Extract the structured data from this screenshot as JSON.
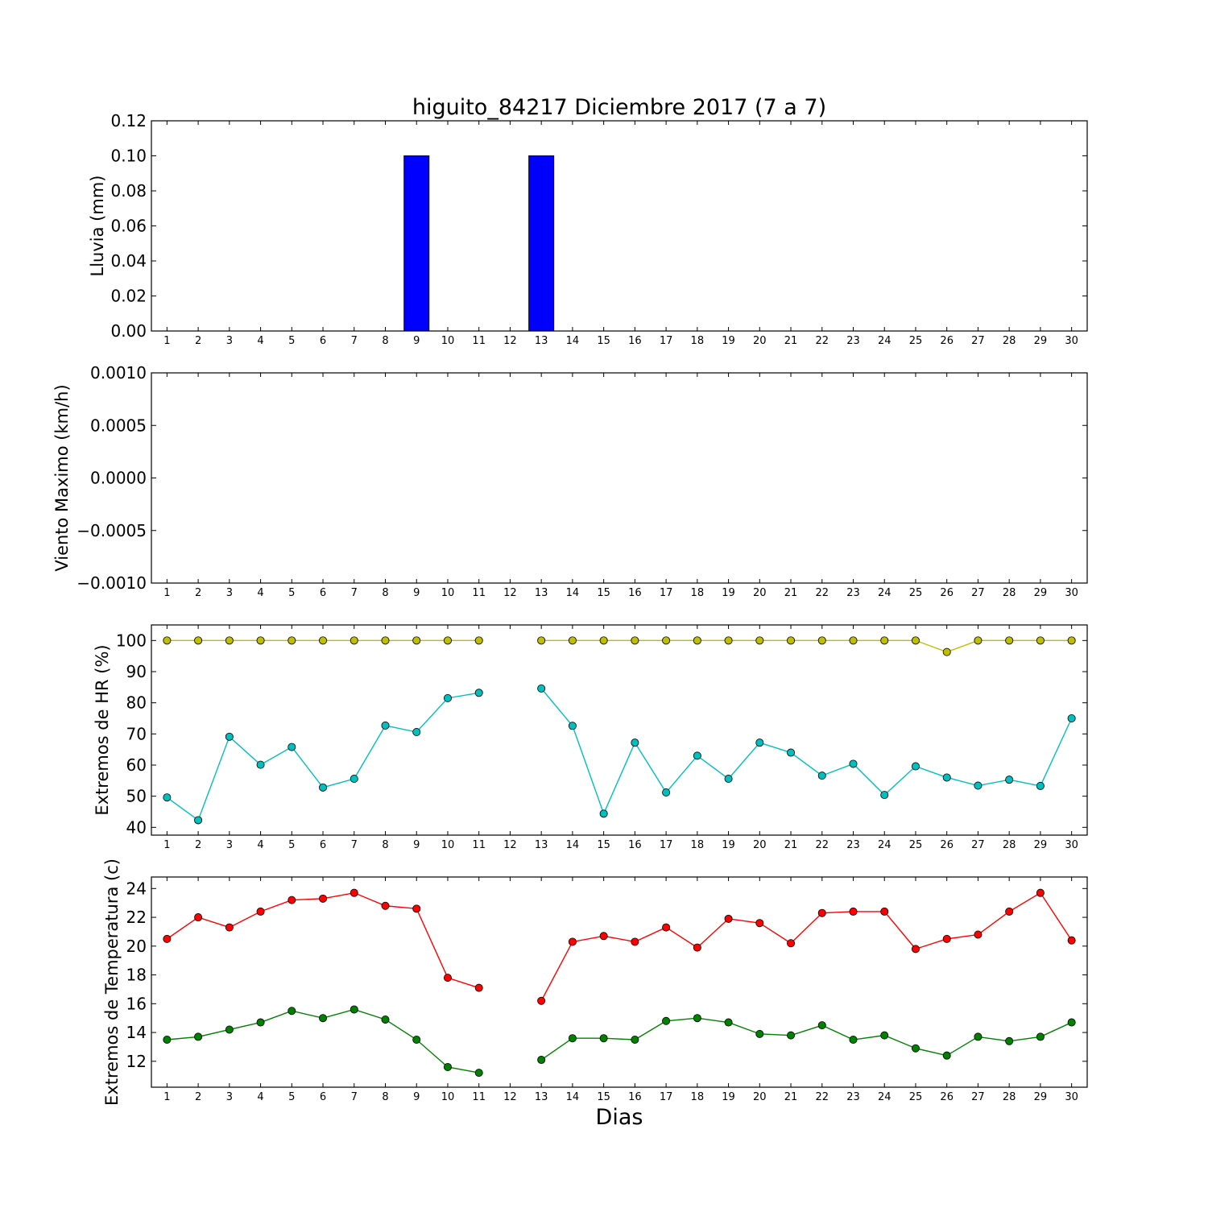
{
  "title": "higuito_84217 Diciembre 2017  (7 a 7)",
  "xlabel": "Dias",
  "chart_data": [
    {
      "type": "bar",
      "ylabel": "Lluvia (mm)",
      "ylim": [
        0,
        0.12
      ],
      "yticks": [
        "0.00",
        "0.02",
        "0.04",
        "0.06",
        "0.08",
        "0.10",
        "0.12"
      ],
      "x": [
        1,
        2,
        3,
        4,
        5,
        6,
        7,
        8,
        9,
        10,
        11,
        12,
        13,
        14,
        15,
        16,
        17,
        18,
        19,
        20,
        21,
        22,
        23,
        24,
        25,
        26,
        27,
        28,
        29,
        30
      ],
      "xticks": [
        "1",
        "2",
        "3",
        "4",
        "5",
        "6",
        "7",
        "8",
        "9",
        "10",
        "11",
        "12",
        "13",
        "14",
        "15",
        "16",
        "17",
        "18",
        "19",
        "20",
        "21",
        "22",
        "23",
        "24",
        "25",
        "26",
        "27",
        "28",
        "29",
        "30"
      ],
      "series": [
        {
          "color": "#0000ff",
          "values": [
            0,
            0,
            0,
            0,
            0,
            0,
            0,
            0,
            0.1,
            0,
            0,
            null,
            0.1,
            0,
            0,
            0,
            0,
            0,
            0,
            0,
            0,
            0,
            0,
            0,
            0,
            0,
            0,
            0,
            0,
            0
          ]
        }
      ]
    },
    {
      "type": "line",
      "ylabel": "Viento Maximo (km/h)",
      "ylim": [
        -0.001,
        0.001
      ],
      "yticks": [
        "−0.0010",
        "−0.0005",
        "0.0000",
        "0.0005",
        "0.0010"
      ],
      "xticks": [
        "1",
        "2",
        "3",
        "4",
        "5",
        "6",
        "7",
        "8",
        "9",
        "10",
        "11",
        "12",
        "13",
        "14",
        "15",
        "16",
        "17",
        "18",
        "19",
        "20",
        "21",
        "22",
        "23",
        "24",
        "25",
        "26",
        "27",
        "28",
        "29",
        "30"
      ],
      "series": []
    },
    {
      "type": "line",
      "ylabel": "Extremos de HR (%)",
      "ylim": [
        37.5,
        105
      ],
      "yticks": [
        "40",
        "50",
        "60",
        "70",
        "80",
        "90",
        "100"
      ],
      "xticks": [
        "1",
        "2",
        "3",
        "4",
        "5",
        "6",
        "7",
        "8",
        "9",
        "10",
        "11",
        "12",
        "13",
        "14",
        "15",
        "16",
        "17",
        "18",
        "19",
        "20",
        "21",
        "22",
        "23",
        "24",
        "25",
        "26",
        "27",
        "28",
        "29",
        "30"
      ],
      "series": [
        {
          "color": "#bfbf00",
          "values": [
            100,
            100,
            100,
            100,
            100,
            100,
            100,
            100,
            100,
            100,
            100,
            null,
            100,
            100,
            100,
            100,
            100,
            100,
            100,
            100,
            100,
            100,
            100,
            100,
            100,
            96.3,
            100,
            100,
            100,
            100
          ]
        },
        {
          "color": "#00bfbf",
          "values": [
            49.6,
            42.3,
            69.1,
            60.1,
            65.8,
            52.8,
            55.6,
            72.7,
            70.6,
            81.5,
            83.2,
            null,
            84.6,
            72.6,
            44.4,
            67.2,
            51.2,
            63.0,
            55.6,
            67.2,
            64.0,
            56.6,
            60.4,
            50.4,
            59.6,
            56.0,
            53.4,
            55.3,
            53.3,
            75.0
          ]
        }
      ]
    },
    {
      "type": "line",
      "ylabel": "Extremos de Temperatura (c)",
      "ylim": [
        10.2,
        24.8
      ],
      "yticks": [
        "12",
        "14",
        "16",
        "18",
        "20",
        "22",
        "24"
      ],
      "xticks": [
        "1",
        "2",
        "3",
        "4",
        "5",
        "6",
        "7",
        "8",
        "9",
        "10",
        "11",
        "12",
        "13",
        "14",
        "15",
        "16",
        "17",
        "18",
        "19",
        "20",
        "21",
        "22",
        "23",
        "24",
        "25",
        "26",
        "27",
        "28",
        "29",
        "30"
      ],
      "series": [
        {
          "color": "#ff0000",
          "values": [
            20.5,
            22.0,
            21.3,
            22.4,
            23.2,
            23.3,
            23.7,
            22.8,
            22.6,
            17.8,
            17.1,
            null,
            16.2,
            20.3,
            20.7,
            20.3,
            21.3,
            19.9,
            21.9,
            21.6,
            20.2,
            22.3,
            22.4,
            22.4,
            19.8,
            20.5,
            20.8,
            22.4,
            23.7,
            20.4
          ]
        },
        {
          "color": "#008000",
          "values": [
            13.5,
            13.7,
            14.2,
            14.7,
            15.5,
            15.0,
            15.6,
            14.9,
            13.5,
            11.6,
            11.2,
            null,
            12.1,
            13.6,
            13.6,
            13.5,
            14.8,
            15.0,
            14.7,
            13.9,
            13.8,
            14.5,
            13.5,
            13.8,
            12.9,
            12.4,
            13.7,
            13.4,
            13.7,
            14.7
          ]
        }
      ]
    }
  ]
}
